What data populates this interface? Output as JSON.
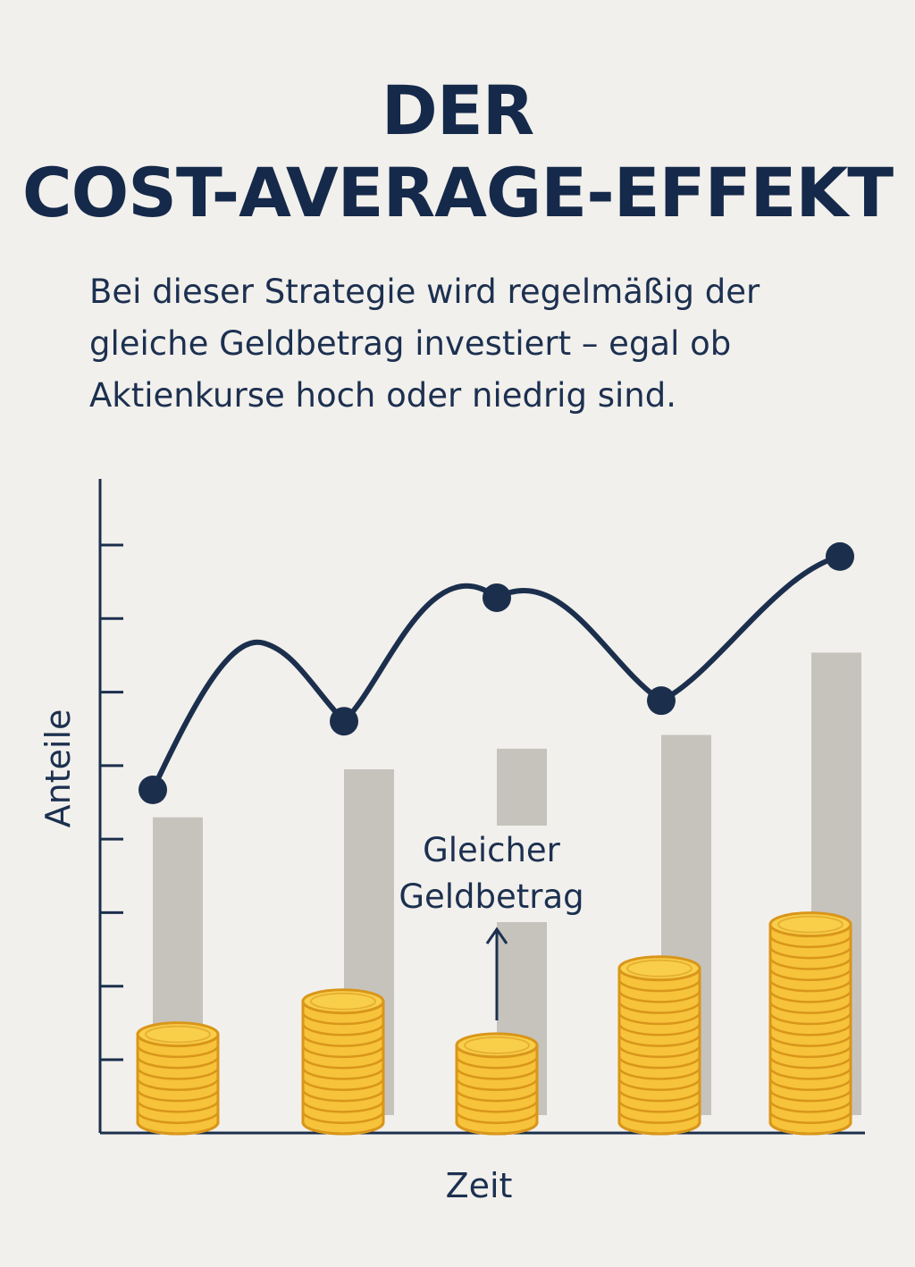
{
  "title_line1": "DER",
  "title_line2": "COST-AVERAGE-EFFEKT",
  "subtitle_lines": [
    "Bei dieser Strategie wird regelmäßig der",
    "gleiche Geldbetrag investiert – egal ob",
    "Aktienkurse hoch oder niedrig sind."
  ],
  "chart_data": {
    "type": "bar",
    "xlabel": "Zeit",
    "ylabel": "Anteile",
    "y_ticks": 8,
    "grid": false,
    "series": [
      {
        "kind": "line",
        "values": [
          5.0,
          6.0,
          7.8,
          6.3,
          8.4
        ]
      },
      {
        "kind": "bar",
        "values": [
          4.6,
          5.3,
          5.6,
          5.8,
          7.0
        ]
      },
      {
        "kind": "coin-stack",
        "values": [
          8,
          11,
          7,
          14,
          18
        ]
      }
    ],
    "annotation": {
      "lines": [
        "Gleicher",
        "Geldbetrag"
      ]
    },
    "colors": {
      "line": "#1b2f4d",
      "bar": "#c6c3bd",
      "coin_fill": "#f6c33a",
      "coin_edge": "#d9961a",
      "axis": "#1b2f4d"
    }
  }
}
